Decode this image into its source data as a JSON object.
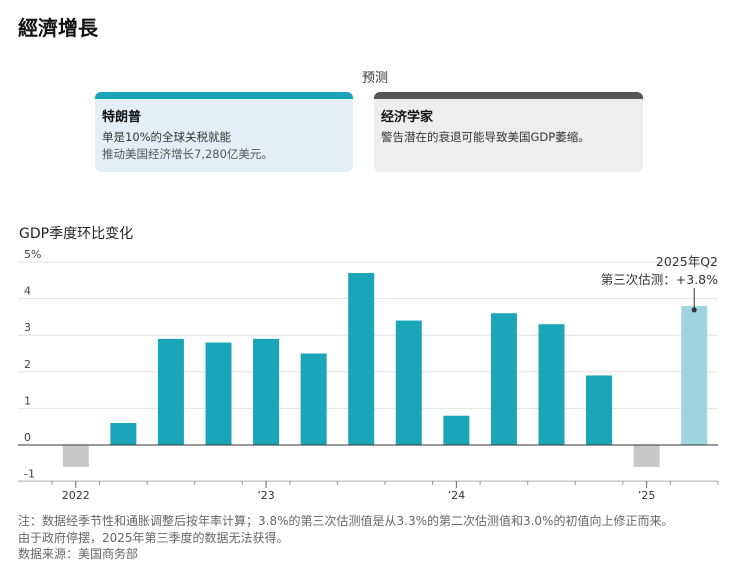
{
  "title": "經濟增長",
  "forecast": {
    "header": "预测",
    "cards": [
      {
        "name": "特朗普",
        "line1": "单是10%的全球关税就能",
        "line2": "推动美国经济增长7,280亿美元。"
      },
      {
        "name": "经济学家",
        "line1": "警告潜在的衰退可能导致美国GDP萎缩。"
      }
    ]
  },
  "colors": {
    "accent": "#1ba5b8",
    "negative": "#c8c8c8",
    "estimate": "#9fd5e0",
    "trump_card_bg": "#e2eff6",
    "economist_card_bg": "#eeeeee",
    "economist_bar": "#555555"
  },
  "chart_data": {
    "type": "bar",
    "title": "GDP季度环比变化",
    "xlabel": "",
    "ylabel": "",
    "ylim": [
      -1,
      5
    ],
    "yticks": [
      -1,
      0,
      1,
      2,
      3,
      4,
      5
    ],
    "ytick_labels": [
      "-1",
      "0",
      "1",
      "2",
      "3",
      "4",
      "5%"
    ],
    "categories": [
      "2022 Q1",
      "2022 Q2",
      "2022 Q3",
      "2022 Q4",
      "2023 Q1",
      "2023 Q2",
      "2023 Q3",
      "2023 Q4",
      "2024 Q1",
      "2024 Q2",
      "2024 Q3",
      "2024 Q4",
      "2025 Q1",
      "2025 Q2"
    ],
    "values": [
      -0.6,
      0.6,
      2.9,
      2.8,
      2.9,
      2.5,
      4.7,
      3.4,
      0.8,
      3.6,
      3.3,
      1.9,
      -0.6,
      3.8
    ],
    "xtick_labels": [
      {
        "index": 0,
        "label": "2022"
      },
      {
        "index": 4,
        "label": "’23"
      },
      {
        "index": 8,
        "label": "’24"
      },
      {
        "index": 12,
        "label": "’25"
      }
    ],
    "annotation": {
      "index": 13,
      "line1": "2025年Q2",
      "line2": "第三次估测：+3.8%"
    },
    "grid": true,
    "legend": "none"
  },
  "notes": {
    "line1": "注：数据经季节性和通胀调整后按年率计算；3.8%的第三次估测值是从3.3%的第二次估测值和3.0%的初值向上修正而来。",
    "line2": "由于政府停摆，2025年第三季度的数据无法获得。",
    "line3": "数据来源：美国商务部"
  }
}
